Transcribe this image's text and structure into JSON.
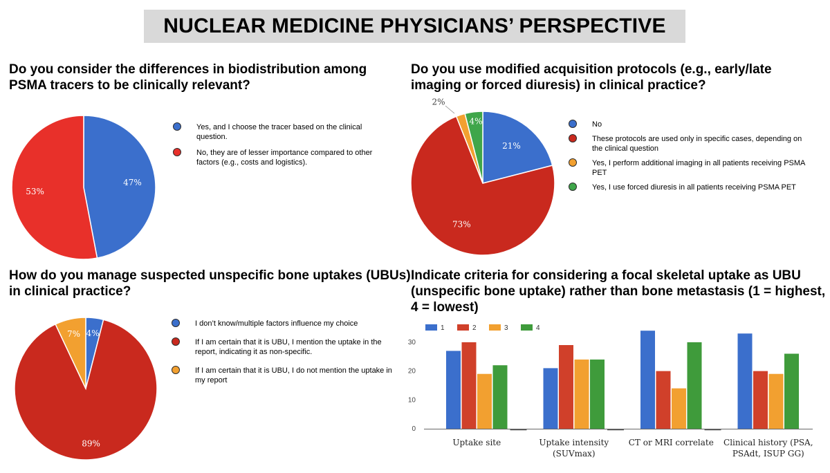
{
  "banner": {
    "title": "NUCLEAR MEDICINE PHYSICIANS’ PERSPECTIVE"
  },
  "colors": {
    "blue": "#3b6fcc",
    "red": "#d0321f",
    "orange": "#f2a030",
    "green": "#3f9b3b"
  },
  "chart_data": [
    {
      "type": "pie",
      "title": "Do you consider the differences in biodistribution among PSMA tracers to be clinically relevant?",
      "slices": [
        {
          "label": "Yes, and I choose the tracer based on the clinical question.",
          "value": 47,
          "display": "47%",
          "color": "#3b6fcc"
        },
        {
          "label": "No, they are of lesser importance compared to other factors (e.g., costs and logistics).",
          "value": 53,
          "display": "53%",
          "color": "#e8302a"
        }
      ]
    },
    {
      "type": "pie",
      "title": "Do you use modified acquisition protocols (e.g., early/late imaging or forced diuresis) in clinical practice?",
      "slices": [
        {
          "label": "No",
          "value": 21,
          "display": "21%",
          "color": "#3b6fcc"
        },
        {
          "label": "These protocols are used only in specific cases, depending on the clinical question",
          "value": 73,
          "display": "73%",
          "color": "#c9291e"
        },
        {
          "label": "Yes, I perform additional imaging in all patients receiving PSMA PET",
          "value": 2,
          "display": "2%",
          "color": "#f2a030"
        },
        {
          "label": "Yes, I use forced diuresis in all patients receiving PSMA PET",
          "value": 4,
          "display": "4%",
          "color": "#3fa64a"
        }
      ]
    },
    {
      "type": "pie",
      "title": "How do you manage suspected unspecific bone uptakes (UBUs) in clinical practice?",
      "slices": [
        {
          "label": "I don’t know/multiple factors influence my choice",
          "value": 4,
          "display": "4%",
          "color": "#3b6fcc"
        },
        {
          "label": "If I am certain that it is UBU, I mention the uptake in the report, indicating it as non-specific.",
          "value": 89,
          "display": "89%",
          "color": "#c9291e"
        },
        {
          "label": "If I am certain that it is UBU, I do not mention the uptake in my report",
          "value": 7,
          "display": "7%",
          "color": "#f2a030"
        }
      ]
    },
    {
      "type": "bar",
      "title": "Indicate criteria for considering a focal skeletal uptake as UBU (unspecific bone uptake) rather than bone metastasis (1 = highest, 4 = lowest)",
      "categories": [
        [
          "Uptake site"
        ],
        [
          "Uptake intensity",
          "(SUVmax)"
        ],
        [
          "CT or MRI correlate"
        ],
        [
          "Clinical history (PSA,",
          "PSAdt, ISUP GG)"
        ]
      ],
      "series": [
        {
          "name": "1",
          "values": [
            27,
            21,
            34,
            33
          ],
          "color": "#3b6fcc"
        },
        {
          "name": "2",
          "values": [
            30,
            29,
            20,
            20
          ],
          "color": "#d0402a"
        },
        {
          "name": "3",
          "values": [
            19,
            24,
            14,
            19
          ],
          "color": "#f2a030"
        },
        {
          "name": "4",
          "values": [
            22,
            24,
            30,
            26
          ],
          "color": "#3f9b3b"
        }
      ],
      "ylim": [
        0,
        35
      ],
      "yticks": [
        0,
        10,
        20,
        30
      ],
      "legend_position": "top-left",
      "grid": false
    }
  ]
}
